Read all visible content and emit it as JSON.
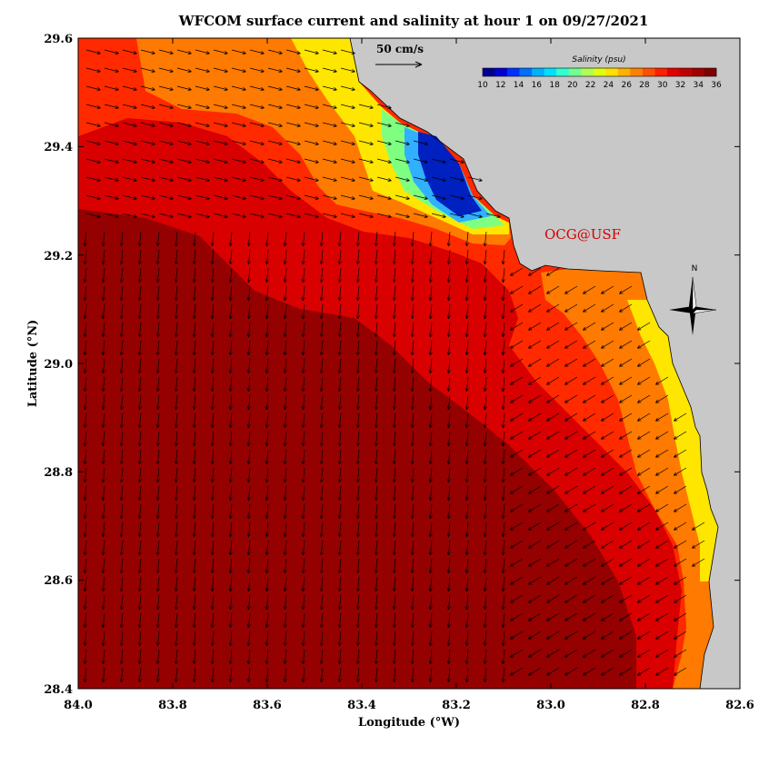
{
  "title": "WFCOM surface current and salinity at hour 1 on 09/27/2021",
  "xaxis": {
    "label": "Longitude (°W)",
    "ticks": [
      "84.0",
      "83.8",
      "83.6",
      "83.4",
      "83.2",
      "83.0",
      "82.8",
      "82.6"
    ],
    "range": [
      84.0,
      82.6
    ]
  },
  "yaxis": {
    "label": "Latitude (°N)",
    "ticks": [
      "28.4",
      "28.6",
      "28.8",
      "29.0",
      "29.2",
      "29.4",
      "29.6"
    ],
    "range": [
      28.4,
      29.6
    ]
  },
  "colorbar": {
    "title": "Salinity (psu)",
    "labels": [
      "10",
      "12",
      "14",
      "16",
      "18",
      "20",
      "22",
      "24",
      "26",
      "28",
      "30",
      "32",
      "34",
      "36"
    ],
    "range": [
      10,
      36
    ]
  },
  "scale_vector": {
    "label": "50 cm/s"
  },
  "credit": "OCG@USF",
  "compass": {
    "label": "N"
  },
  "colors": {
    "land": "#c8c8c8",
    "deep_salinity": "#950000",
    "high_salinity": "#c40000",
    "mid_salinity": "#ff2a00",
    "orange": "#ff7a00",
    "yellow": "#ffe600",
    "low_salinity": "#0020c0",
    "credit": "#d40000"
  },
  "chart_data": {
    "type": "map",
    "title": "WFCOM surface current and salinity at hour 1 on 09/27/2021",
    "xlabel": "Longitude (°W)",
    "ylabel": "Latitude (°N)",
    "xlim": [
      84.0,
      82.6
    ],
    "ylim": [
      28.4,
      29.6
    ],
    "field": "surface salinity (psu) with current vectors",
    "colorbar_range": [
      10,
      36
    ],
    "features": [
      "Low-salinity plume (~10 psu) near 83.2°W, 29.3°N",
      "Freshwater band (~26-30 psu) along the coast",
      "Offshore salinity ~34-36 psu"
    ]
  }
}
